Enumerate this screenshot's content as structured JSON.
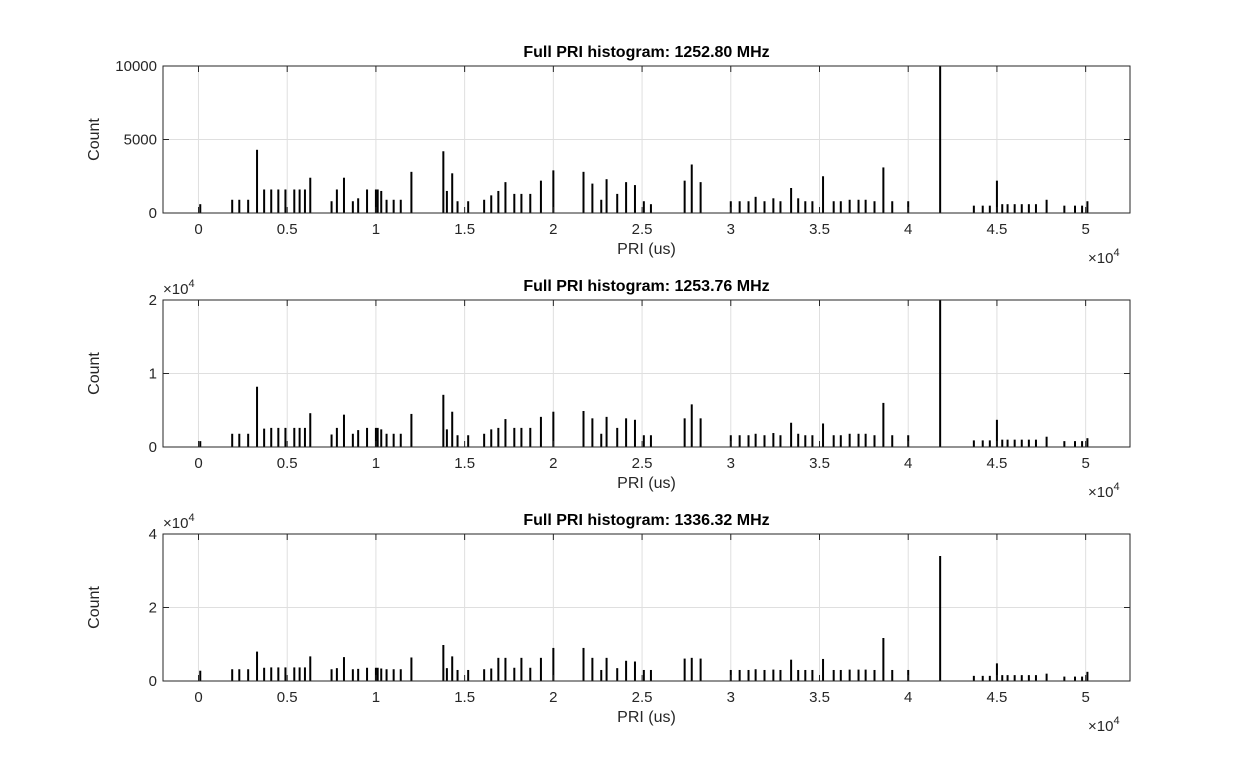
{
  "chart_data": [
    {
      "type": "bar",
      "title": "Full PRI histogram: 1252.80 MHz",
      "xlabel": "PRI (us)",
      "ylabel": "Count",
      "xlim": [
        -2000,
        52500
      ],
      "ylim": [
        0,
        10000
      ],
      "x_ticks": [
        0,
        5000,
        10000,
        15000,
        20000,
        25000,
        30000,
        35000,
        40000,
        45000,
        50000
      ],
      "x_tick_labels": [
        "0",
        "0.5",
        "1",
        "1.5",
        "2",
        "2.5",
        "3",
        "3.5",
        "4",
        "4.5",
        "5"
      ],
      "x_exponent": "4",
      "y_ticks": [
        0,
        5000,
        10000
      ],
      "y_tick_labels": [
        "0",
        "5000",
        "10000"
      ],
      "y_exponent": "",
      "grid": true,
      "x": [
        100,
        1900,
        2300,
        2800,
        3300,
        3700,
        4100,
        4500,
        4900,
        5400,
        5700,
        6000,
        6300,
        7500,
        7800,
        8200,
        8700,
        9000,
        9500,
        10000,
        10100,
        10300,
        10600,
        11000,
        11400,
        12000,
        13800,
        14000,
        14300,
        14600,
        15200,
        16100,
        16500,
        16900,
        17300,
        17800,
        18200,
        18700,
        19300,
        20000,
        21700,
        22200,
        22700,
        23000,
        23600,
        24100,
        24600,
        25100,
        25500,
        27400,
        27800,
        28300,
        30000,
        30500,
        31000,
        31400,
        31900,
        32400,
        32800,
        33400,
        33800,
        34200,
        34600,
        35200,
        35800,
        36200,
        36700,
        37200,
        37600,
        38100,
        38600,
        39100,
        40000,
        41800,
        43700,
        44200,
        44600,
        45000,
        45300,
        45600,
        46000,
        46400,
        46800,
        47200,
        47800,
        48800,
        49400,
        49800,
        50100
      ],
      "values": [
        600,
        900,
        900,
        900,
        4300,
        1600,
        1600,
        1600,
        1600,
        1600,
        1600,
        1600,
        2400,
        800,
        1600,
        2400,
        800,
        1000,
        1600,
        1600,
        1600,
        1500,
        900,
        900,
        900,
        2800,
        4200,
        1500,
        2700,
        800,
        800,
        900,
        1200,
        1500,
        2100,
        1300,
        1300,
        1300,
        2200,
        2900,
        2800,
        2000,
        900,
        2300,
        1300,
        2100,
        1900,
        800,
        600,
        2200,
        3300,
        2100,
        800,
        800,
        800,
        1100,
        800,
        1000,
        800,
        1700,
        1000,
        800,
        800,
        2500,
        800,
        800,
        900,
        900,
        900,
        800,
        3100,
        800,
        800,
        10000,
        500,
        500,
        500,
        2200,
        600,
        600,
        600,
        600,
        600,
        600,
        900,
        500,
        500,
        500,
        800
      ]
    },
    {
      "type": "bar",
      "title": "Full PRI histogram: 1253.76 MHz",
      "xlabel": "PRI (us)",
      "ylabel": "Count",
      "xlim": [
        -2000,
        52500
      ],
      "ylim": [
        0,
        20000
      ],
      "x_ticks": [
        0,
        5000,
        10000,
        15000,
        20000,
        25000,
        30000,
        35000,
        40000,
        45000,
        50000
      ],
      "x_tick_labels": [
        "0",
        "0.5",
        "1",
        "1.5",
        "2",
        "2.5",
        "3",
        "3.5",
        "4",
        "4.5",
        "5"
      ],
      "x_exponent": "4",
      "y_ticks": [
        0,
        10000,
        20000
      ],
      "y_tick_labels": [
        "0",
        "1",
        "2"
      ],
      "y_exponent": "4",
      "grid": true,
      "x": [
        100,
        1900,
        2300,
        2800,
        3300,
        3700,
        4100,
        4500,
        4900,
        5400,
        5700,
        6000,
        6300,
        7500,
        7800,
        8200,
        8700,
        9000,
        9500,
        10000,
        10100,
        10300,
        10600,
        11000,
        11400,
        12000,
        13800,
        14000,
        14300,
        14600,
        15200,
        16100,
        16500,
        16900,
        17300,
        17800,
        18200,
        18700,
        19300,
        20000,
        21700,
        22200,
        22700,
        23000,
        23600,
        24100,
        24600,
        25100,
        25500,
        27400,
        27800,
        28300,
        30000,
        30500,
        31000,
        31400,
        31900,
        32400,
        32800,
        33400,
        33800,
        34200,
        34600,
        35200,
        35800,
        36200,
        36700,
        37200,
        37600,
        38100,
        38600,
        39100,
        40000,
        41800,
        43700,
        44200,
        44600,
        45000,
        45300,
        45600,
        46000,
        46400,
        46800,
        47200,
        47800,
        48800,
        49400,
        49800,
        50100
      ],
      "values": [
        800,
        1800,
        1800,
        1800,
        8200,
        2500,
        2600,
        2600,
        2600,
        2600,
        2600,
        2600,
        4600,
        1700,
        2600,
        4400,
        1800,
        2300,
        2600,
        2600,
        2600,
        2400,
        1800,
        1800,
        1800,
        4500,
        7100,
        2400,
        4800,
        1600,
        1600,
        1800,
        2400,
        2600,
        3800,
        2600,
        2600,
        2600,
        4100,
        4800,
        4900,
        3900,
        1800,
        4100,
        2600,
        3900,
        3700,
        1600,
        1600,
        3900,
        5800,
        3900,
        1600,
        1600,
        1600,
        1800,
        1600,
        1900,
        1600,
        3300,
        1800,
        1600,
        1600,
        3200,
        1600,
        1600,
        1800,
        1800,
        1800,
        1600,
        6000,
        1600,
        1600,
        20000,
        900,
        900,
        900,
        3700,
        1000,
        1000,
        1000,
        1000,
        1000,
        1000,
        1400,
        800,
        800,
        800,
        1200
      ]
    },
    {
      "type": "bar",
      "title": "Full PRI histogram: 1336.32 MHz",
      "xlabel": "PRI (us)",
      "ylabel": "Count",
      "xlim": [
        -2000,
        52500
      ],
      "ylim": [
        0,
        40000
      ],
      "x_ticks": [
        0,
        5000,
        10000,
        15000,
        20000,
        25000,
        30000,
        35000,
        40000,
        45000,
        50000
      ],
      "x_tick_labels": [
        "0",
        "0.5",
        "1",
        "1.5",
        "2",
        "2.5",
        "3",
        "3.5",
        "4",
        "4.5",
        "5"
      ],
      "x_exponent": "4",
      "y_ticks": [
        0,
        20000,
        40000
      ],
      "y_tick_labels": [
        "0",
        "2",
        "4"
      ],
      "y_exponent": "4",
      "grid": true,
      "x": [
        100,
        1900,
        2300,
        2800,
        3300,
        3700,
        4100,
        4500,
        4900,
        5400,
        5700,
        6000,
        6300,
        7500,
        7800,
        8200,
        8700,
        9000,
        9500,
        10000,
        10100,
        10300,
        10600,
        11000,
        11400,
        12000,
        13800,
        14000,
        14300,
        14600,
        15200,
        16100,
        16500,
        16900,
        17300,
        17800,
        18200,
        18700,
        19300,
        20000,
        21700,
        22200,
        22700,
        23000,
        23600,
        24100,
        24600,
        25100,
        25500,
        27400,
        27800,
        28300,
        30000,
        30500,
        31000,
        31400,
        31900,
        32400,
        32800,
        33400,
        33800,
        34200,
        34600,
        35200,
        35800,
        36200,
        36700,
        37200,
        37600,
        38100,
        38600,
        39100,
        40000,
        41800,
        43700,
        44200,
        44600,
        45000,
        45300,
        45600,
        46000,
        46400,
        46800,
        47200,
        47800,
        48800,
        49400,
        49800,
        50100
      ],
      "values": [
        2800,
        3200,
        3200,
        3200,
        8000,
        3600,
        3700,
        3700,
        3700,
        3700,
        3700,
        3700,
        6700,
        3200,
        3500,
        6500,
        3200,
        3300,
        3600,
        3600,
        3600,
        3400,
        3200,
        3200,
        3200,
        6400,
        9800,
        3500,
        6700,
        3000,
        3000,
        3200,
        3400,
        6300,
        6300,
        3600,
        6300,
        3600,
        6300,
        9000,
        9000,
        6300,
        3000,
        6300,
        3500,
        5500,
        5300,
        3000,
        3000,
        6100,
        6300,
        6100,
        3000,
        3000,
        3000,
        3200,
        3000,
        3100,
        3000,
        5800,
        3000,
        3000,
        3000,
        6000,
        3000,
        3000,
        3100,
        3100,
        3100,
        3000,
        11700,
        3000,
        3000,
        34000,
        1400,
        1400,
        1400,
        4800,
        1600,
        1600,
        1600,
        1600,
        1600,
        1600,
        2000,
        1200,
        1200,
        1200,
        2500
      ]
    }
  ]
}
